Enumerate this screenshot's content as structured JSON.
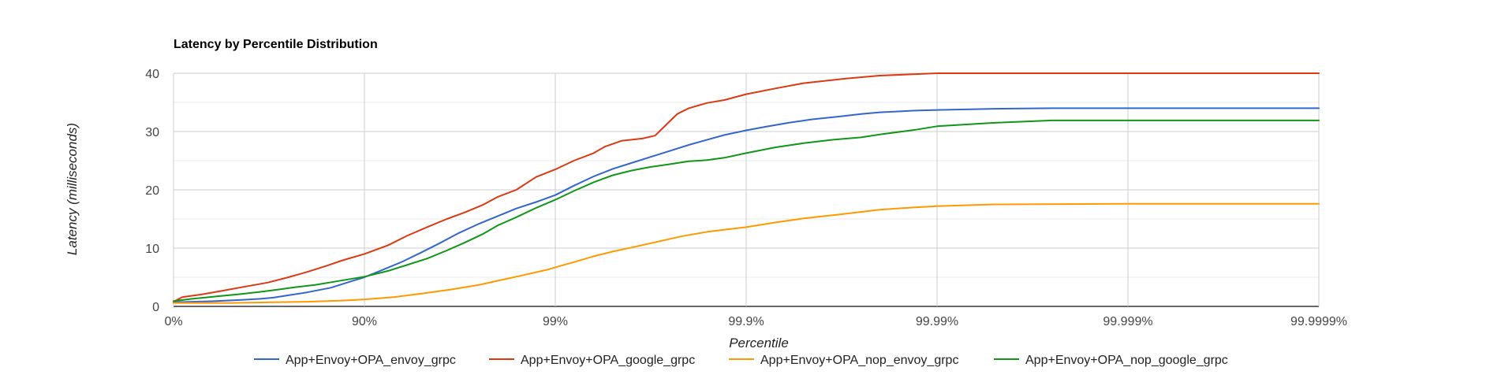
{
  "chart_data": {
    "type": "line",
    "title": "Latency by Percentile Distribution",
    "xlabel": "Percentile",
    "ylabel": "Latency (milliseconds)",
    "x_scale": "log-nines",
    "x_ticks": [
      "0%",
      "90%",
      "99%",
      "99.9%",
      "99.99%",
      "99.999%",
      "99.9999%"
    ],
    "y_ticks": [
      "0",
      "10",
      "20",
      "30",
      "40"
    ],
    "ylim": [
      0,
      40
    ],
    "grid": true,
    "legend_position": "bottom",
    "series": [
      {
        "name": "App+Envoy+OPA_envoy_grpc",
        "color": "#3366cc",
        "points": [
          [
            "0%",
            0.7
          ],
          [
            "20%",
            0.8
          ],
          [
            "40%",
            0.9
          ],
          [
            "55%",
            1.1
          ],
          [
            "65%",
            1.3
          ],
          [
            "70%",
            1.5
          ],
          [
            "75%",
            1.9
          ],
          [
            "80%",
            2.4
          ],
          [
            "85%",
            3.2
          ],
          [
            "88%",
            4.2
          ],
          [
            "90%",
            5.0
          ],
          [
            "92%",
            6.3
          ],
          [
            "93.7%",
            7.7
          ],
          [
            "95%",
            9.3
          ],
          [
            "96%",
            10.9
          ],
          [
            "96.8%",
            12.6
          ],
          [
            "97.5%",
            14.2
          ],
          [
            "98%",
            15.5
          ],
          [
            "98.4%",
            16.8
          ],
          [
            "98.74%",
            17.9
          ],
          [
            "99%",
            19.1
          ],
          [
            "99.2%",
            20.7
          ],
          [
            "99.37%",
            22.3
          ],
          [
            "99.5%",
            23.6
          ],
          [
            "99.6%",
            24.6
          ],
          [
            "99.68%",
            25.6
          ],
          [
            "99.75%",
            26.7
          ],
          [
            "99.8%",
            27.7
          ],
          [
            "99.84%",
            28.6
          ],
          [
            "99.87%",
            29.4
          ],
          [
            "99.9%",
            30.2
          ],
          [
            "99.92%",
            30.8
          ],
          [
            "99.94%",
            31.5
          ],
          [
            "99.955%",
            32.1
          ],
          [
            "99.968%",
            32.6
          ],
          [
            "99.975%",
            33.0
          ],
          [
            "99.98%",
            33.3
          ],
          [
            "99.987%",
            33.6
          ],
          [
            "99.99%",
            33.7
          ],
          [
            "99.995%",
            33.9
          ],
          [
            "99.9975%",
            34.0
          ],
          [
            "99.999%",
            34.0
          ],
          [
            "99.9999%",
            34.0
          ]
        ]
      },
      {
        "name": "App+Envoy+OPA_google_grpc",
        "color": "#dc3912",
        "points": [
          [
            "0%",
            0.8
          ],
          [
            "10%",
            1.6
          ],
          [
            "30%",
            2.1
          ],
          [
            "45%",
            2.7
          ],
          [
            "58%",
            3.4
          ],
          [
            "68%",
            4.1
          ],
          [
            "75%",
            5.0
          ],
          [
            "80%",
            5.9
          ],
          [
            "84%",
            6.9
          ],
          [
            "87%",
            7.9
          ],
          [
            "90%",
            9.0
          ],
          [
            "92.5%",
            10.5
          ],
          [
            "94%",
            12.1
          ],
          [
            "95.3%",
            13.6
          ],
          [
            "96.3%",
            15.0
          ],
          [
            "97%",
            16.1
          ],
          [
            "97.6%",
            17.4
          ],
          [
            "98%",
            18.8
          ],
          [
            "98.4%",
            20.0
          ],
          [
            "98.74%",
            22.2
          ],
          [
            "99%",
            23.5
          ],
          [
            "99.2%",
            25.0
          ],
          [
            "99.37%",
            26.3
          ],
          [
            "99.45%",
            27.4
          ],
          [
            "99.55%",
            28.4
          ],
          [
            "99.65%",
            28.8
          ],
          [
            "99.7%",
            29.3
          ],
          [
            "99.74%",
            31.3
          ],
          [
            "99.77%",
            33.0
          ],
          [
            "99.8%",
            34.0
          ],
          [
            "99.84%",
            34.9
          ],
          [
            "99.87%",
            35.4
          ],
          [
            "99.9%",
            36.4
          ],
          [
            "99.93%",
            37.4
          ],
          [
            "99.95%",
            38.3
          ],
          [
            "99.97%",
            39.1
          ],
          [
            "99.98%",
            39.6
          ],
          [
            "99.99%",
            40.0
          ],
          [
            "99.999%",
            40.0
          ],
          [
            "99.9999%",
            40.0
          ]
        ]
      },
      {
        "name": "App+Envoy+OPA_nop_envoy_grpc",
        "color": "#ff9900",
        "points": [
          [
            "0%",
            0.6
          ],
          [
            "50%",
            0.6
          ],
          [
            "70%",
            0.7
          ],
          [
            "80%",
            0.8
          ],
          [
            "87%",
            1.0
          ],
          [
            "90%",
            1.2
          ],
          [
            "93%",
            1.6
          ],
          [
            "95%",
            2.2
          ],
          [
            "96.5%",
            2.9
          ],
          [
            "97.5%",
            3.7
          ],
          [
            "98%",
            4.4
          ],
          [
            "98.5%",
            5.3
          ],
          [
            "98.9%",
            6.3
          ],
          [
            "99%",
            6.7
          ],
          [
            "99.2%",
            7.6
          ],
          [
            "99.37%",
            8.6
          ],
          [
            "99.5%",
            9.4
          ],
          [
            "99.6%",
            10.1
          ],
          [
            "99.7%",
            11.0
          ],
          [
            "99.78%",
            12.0
          ],
          [
            "99.84%",
            12.8
          ],
          [
            "99.9%",
            13.6
          ],
          [
            "99.93%",
            14.4
          ],
          [
            "99.95%",
            15.1
          ],
          [
            "99.968%",
            15.8
          ],
          [
            "99.98%",
            16.6
          ],
          [
            "99.987%",
            17.0
          ],
          [
            "99.99%",
            17.2
          ],
          [
            "99.995%",
            17.5
          ],
          [
            "99.999%",
            17.6
          ],
          [
            "99.9999%",
            17.6
          ]
        ]
      },
      {
        "name": "App+Envoy+OPA_nop_google_grpc",
        "color": "#109618",
        "points": [
          [
            "0%",
            0.9
          ],
          [
            "20%",
            1.3
          ],
          [
            "40%",
            1.7
          ],
          [
            "55%",
            2.1
          ],
          [
            "65%",
            2.5
          ],
          [
            "72%",
            2.9
          ],
          [
            "77%",
            3.3
          ],
          [
            "82%",
            3.7
          ],
          [
            "86%",
            4.3
          ],
          [
            "90%",
            5.1
          ],
          [
            "92.5%",
            6.1
          ],
          [
            "94%",
            7.1
          ],
          [
            "95.3%",
            8.2
          ],
          [
            "96.3%",
            9.6
          ],
          [
            "97%",
            10.9
          ],
          [
            "97.6%",
            12.4
          ],
          [
            "98%",
            13.9
          ],
          [
            "98.4%",
            15.3
          ],
          [
            "98.74%",
            16.9
          ],
          [
            "99%",
            18.3
          ],
          [
            "99.2%",
            19.8
          ],
          [
            "99.37%",
            21.3
          ],
          [
            "99.5%",
            22.5
          ],
          [
            "99.6%",
            23.3
          ],
          [
            "99.68%",
            23.9
          ],
          [
            "99.75%",
            24.4
          ],
          [
            "99.8%",
            24.9
          ],
          [
            "99.84%",
            25.1
          ],
          [
            "99.87%",
            25.5
          ],
          [
            "99.9%",
            26.3
          ],
          [
            "99.93%",
            27.3
          ],
          [
            "99.95%",
            28.0
          ],
          [
            "99.965%",
            28.6
          ],
          [
            "99.975%",
            29.0
          ],
          [
            "99.98%",
            29.5
          ],
          [
            "99.987%",
            30.3
          ],
          [
            "99.99%",
            30.9
          ],
          [
            "99.995%",
            31.5
          ],
          [
            "99.9975%",
            31.9
          ],
          [
            "99.999%",
            31.9
          ],
          [
            "99.9999%",
            31.9
          ]
        ]
      }
    ]
  }
}
